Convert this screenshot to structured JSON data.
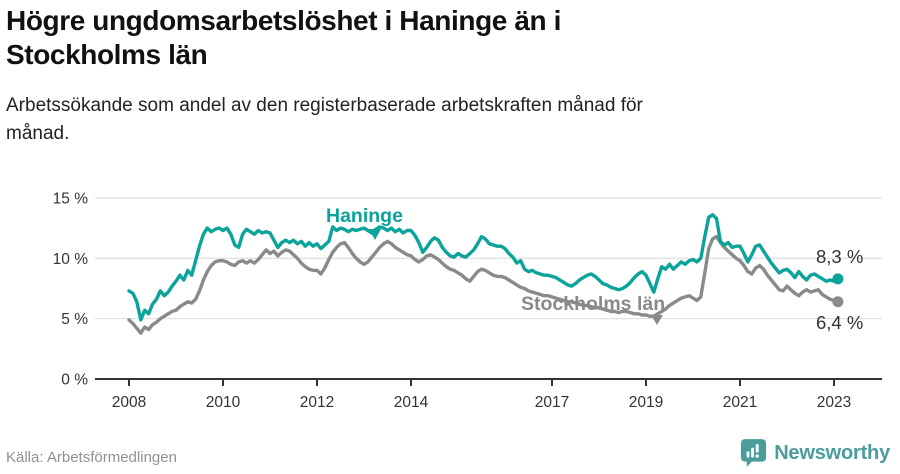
{
  "header": {
    "title_lines": [
      "Högre ungdomsarbetslöshet i Haninge än i",
      "Stockholms län"
    ],
    "subtitle_lines": [
      "Arbetssökande som andel av den registerbaserade arbetskraften månad för",
      "månad."
    ]
  },
  "footer": {
    "source": "Källa: Arbetsförmedlingen",
    "brand_name": "Newsworthy",
    "brand_icon": "speech-bubble-bar-chart-icon"
  },
  "colors": {
    "haninge": "#0CA39A",
    "stockholm": "#8A8A8A",
    "grid": "#E2E2E2",
    "axis": "#333333",
    "tick_label": "#333333",
    "value_label": "#333333",
    "brand_teal": "#4A9D9B"
  },
  "chart_data": {
    "type": "line",
    "x_start": {
      "year": 2008,
      "month": 1
    },
    "x_end": {
      "year": 2023,
      "month": 2
    },
    "x_unit": "month",
    "x_tick_years": [
      2008,
      2010,
      2012,
      2014,
      2017,
      2019,
      2021,
      2023
    ],
    "x_tick_labels": [
      "2008",
      "2010",
      "2012",
      "2014",
      "2017",
      "2019",
      "2021",
      "2023"
    ],
    "y_tick_values": [
      0,
      5,
      10,
      15
    ],
    "y_tick_labels": [
      "0 %",
      "5 %",
      "10 %",
      "15 %"
    ],
    "ylim": [
      0,
      15
    ],
    "grid": "horizontal-only",
    "legend": "inline-labels-on-lines",
    "series": [
      {
        "name": "Stockholms län",
        "color": "#8A8A8A",
        "end_label": "6,4 %",
        "end_value": 6.4,
        "values": [
          4.9,
          4.6,
          4.2,
          3.8,
          4.3,
          4.1,
          4.5,
          4.7,
          5.0,
          5.2,
          5.4,
          5.6,
          5.7,
          6.0,
          6.2,
          6.4,
          6.3,
          6.6,
          7.3,
          8.2,
          8.9,
          9.4,
          9.7,
          9.8,
          9.8,
          9.7,
          9.5,
          9.4,
          9.7,
          9.8,
          9.6,
          9.8,
          9.6,
          9.9,
          10.3,
          10.7,
          10.4,
          10.6,
          10.2,
          10.5,
          10.7,
          10.6,
          10.3,
          10.0,
          9.6,
          9.3,
          9.1,
          9.0,
          9.0,
          8.7,
          9.2,
          9.9,
          10.5,
          10.9,
          11.2,
          11.3,
          10.9,
          10.4,
          10.0,
          9.7,
          9.5,
          9.7,
          10.1,
          10.5,
          10.9,
          11.2,
          11.4,
          11.2,
          10.9,
          10.7,
          10.5,
          10.3,
          10.2,
          9.9,
          9.7,
          9.9,
          10.2,
          10.3,
          10.1,
          9.9,
          9.6,
          9.3,
          9.1,
          9.0,
          8.8,
          8.6,
          8.3,
          8.1,
          8.5,
          8.9,
          9.1,
          9.0,
          8.8,
          8.6,
          8.5,
          8.5,
          8.4,
          8.2,
          8.0,
          7.8,
          7.6,
          7.5,
          7.3,
          7.2,
          7.1,
          7.0,
          6.9,
          6.9,
          6.8,
          6.7,
          6.6,
          6.5,
          6.4,
          6.4,
          6.3,
          6.2,
          6.1,
          6.1,
          6.0,
          5.9,
          5.9,
          5.8,
          5.7,
          5.6,
          5.6,
          5.5,
          5.6,
          5.6,
          5.5,
          5.4,
          5.4,
          5.3,
          5.3,
          5.2,
          5.2,
          5.4,
          5.6,
          5.8,
          6.1,
          6.3,
          6.5,
          6.7,
          6.8,
          6.9,
          6.7,
          6.5,
          6.8,
          8.8,
          10.8,
          11.6,
          11.8,
          11.3,
          10.9,
          10.6,
          10.3,
          10.0,
          9.8,
          9.4,
          8.9,
          8.7,
          9.2,
          9.4,
          9.1,
          8.6,
          8.2,
          7.8,
          7.4,
          7.3,
          7.7,
          7.4,
          7.1,
          6.9,
          7.2,
          7.4,
          7.2,
          7.3,
          7.4,
          7.0,
          6.8,
          6.6,
          6.5,
          6.4
        ]
      },
      {
        "name": "Haninge",
        "color": "#0CA39A",
        "end_label": "8,3 %",
        "end_value": 8.3,
        "values": [
          7.3,
          7.1,
          6.4,
          4.9,
          5.7,
          5.4,
          6.2,
          6.6,
          7.3,
          6.9,
          7.2,
          7.7,
          8.1,
          8.6,
          8.2,
          9.0,
          8.6,
          9.8,
          11.0,
          12.0,
          12.5,
          12.2,
          12.4,
          12.5,
          12.3,
          12.5,
          12.0,
          11.1,
          10.9,
          12.0,
          12.4,
          12.2,
          12.0,
          12.3,
          12.1,
          12.2,
          12.1,
          11.5,
          10.9,
          11.3,
          11.5,
          11.3,
          11.5,
          11.2,
          11.4,
          11.0,
          11.3,
          11.0,
          11.2,
          10.8,
          11.1,
          11.4,
          12.6,
          12.3,
          12.5,
          12.4,
          12.2,
          12.4,
          12.3,
          12.4,
          12.5,
          12.3,
          12.1,
          12.4,
          12.6,
          12.5,
          12.3,
          12.5,
          12.2,
          12.4,
          12.1,
          12.3,
          12.3,
          11.9,
          11.3,
          10.5,
          10.9,
          11.4,
          11.7,
          11.5,
          10.9,
          10.5,
          10.2,
          10.1,
          10.4,
          10.2,
          10.1,
          10.4,
          10.7,
          11.2,
          11.8,
          11.6,
          11.2,
          11.1,
          11.0,
          11.0,
          10.8,
          10.4,
          10.1,
          9.6,
          9.8,
          9.1,
          8.9,
          9.0,
          8.8,
          8.7,
          8.6,
          8.6,
          8.5,
          8.4,
          8.2,
          8.0,
          7.8,
          7.7,
          7.9,
          8.2,
          8.4,
          8.6,
          8.7,
          8.5,
          8.2,
          7.9,
          7.8,
          7.6,
          7.5,
          7.4,
          7.5,
          7.7,
          8.0,
          8.4,
          8.7,
          8.9,
          8.6,
          7.9,
          7.2,
          8.3,
          9.3,
          9.1,
          9.5,
          9.1,
          9.4,
          9.7,
          9.5,
          9.8,
          9.9,
          9.7,
          10.0,
          11.8,
          13.4,
          13.6,
          13.3,
          11.4,
          11.1,
          11.3,
          10.9,
          11.0,
          11.0,
          10.4,
          9.7,
          10.3,
          11.0,
          11.1,
          10.6,
          10.1,
          9.6,
          9.2,
          8.8,
          9.0,
          9.1,
          8.8,
          8.4,
          8.9,
          8.5,
          8.2,
          8.6,
          8.7,
          8.5,
          8.3,
          8.1,
          8.2,
          8.1,
          8.3
        ]
      }
    ]
  }
}
